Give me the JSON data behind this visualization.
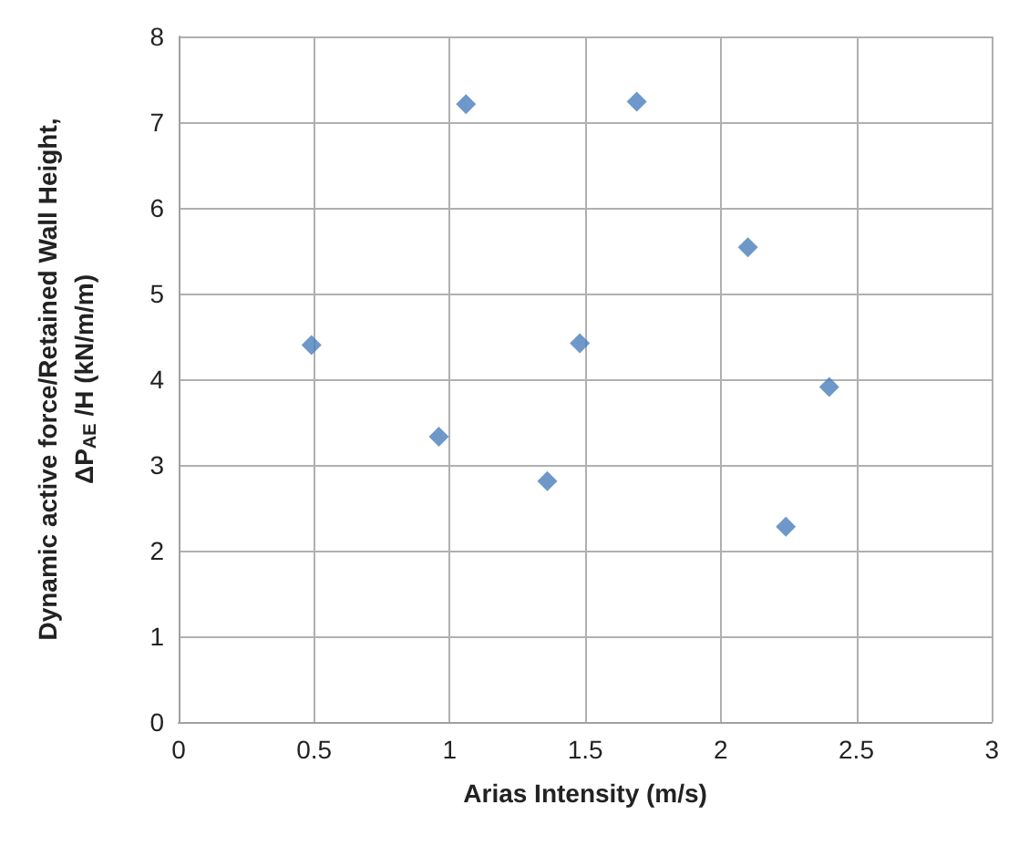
{
  "chart_data": {
    "type": "scatter",
    "xlabel": "Arias Intensity (m/s)",
    "ylabel": "Dynamic active force/Retained Wall Height,\nΔP$_{AE}$ /H (kN/m/m)",
    "x": [
      0.49,
      0.96,
      1.06,
      1.36,
      1.48,
      1.69,
      2.1,
      2.24,
      2.4
    ],
    "series": [
      {
        "color": "#4a7ebb",
        "values": [
          4.4,
          3.33,
          7.21,
          2.81,
          4.42,
          7.24,
          5.54,
          2.28,
          3.91
        ]
      }
    ],
    "xlim": [
      0,
      3
    ],
    "xticks": [
      0,
      0.5,
      1,
      1.5,
      2,
      2.5,
      3
    ],
    "ylim": [
      0,
      8
    ],
    "yticks": [
      0,
      1,
      2,
      3,
      4,
      5,
      6,
      7,
      8
    ],
    "grid": true,
    "marker": "diamond"
  }
}
